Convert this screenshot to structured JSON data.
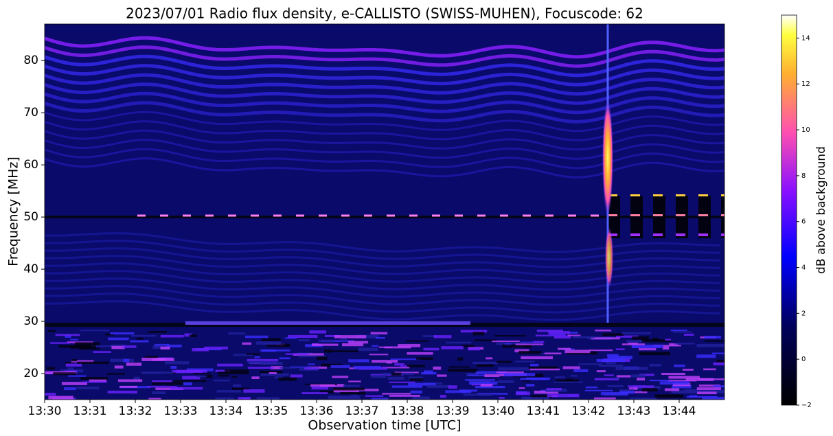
{
  "chart_data": {
    "type": "spectrogram",
    "title": "2023/07/01  Radio flux density, e-CALLISTO (SWISS-MUHEN), Focuscode: 62",
    "x_label": "Observation time [UTC]",
    "y_label": "Frequency [MHz]",
    "xlim": [
      "13:30",
      "13:45"
    ],
    "xticks": [
      "13:30",
      "13:31",
      "13:32",
      "13:33",
      "13:34",
      "13:35",
      "13:36",
      "13:37",
      "13:38",
      "13:39",
      "13:40",
      "13:41",
      "13:42",
      "13:43",
      "13:44"
    ],
    "ylim": [
      15,
      87
    ],
    "yticks": [
      20,
      30,
      40,
      50,
      60,
      70,
      80
    ],
    "colorbar": {
      "label": "dB above background",
      "colormap": "gnuplot2",
      "lim": [
        -2,
        15
      ],
      "ticks": [
        {
          "value": -2,
          "label": "−2"
        },
        0,
        2,
        4,
        6,
        8,
        10,
        12,
        14
      ]
    }
  }
}
